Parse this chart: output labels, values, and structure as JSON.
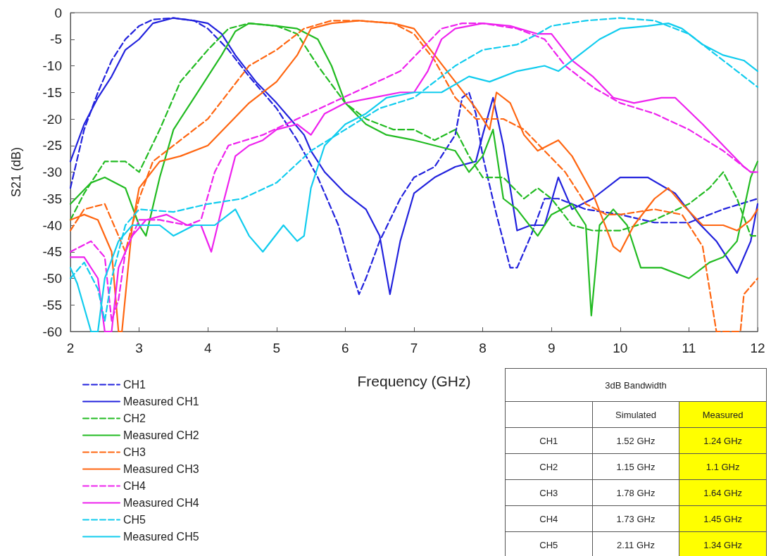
{
  "chart_data": [
    {
      "type": "line",
      "xlabel": "Frequency (GHz)",
      "ylabel": "S21 (dB)",
      "xlim": [
        2,
        12
      ],
      "xticks": [
        2,
        3,
        4,
        5,
        6,
        7,
        8,
        9,
        10,
        11,
        12
      ],
      "ylim": [
        -60,
        0
      ],
      "yticks": [
        -60,
        -55,
        -50,
        -45,
        -40,
        -35,
        -30,
        -25,
        -20,
        -15,
        -10,
        -5,
        0
      ],
      "grid": false,
      "legend": "bottom left",
      "series": [
        {
          "name": "CH1",
          "color": "#2222dd",
          "line_style": "dashed",
          "x": [
            2.0,
            2.2,
            2.4,
            2.6,
            2.8,
            3.0,
            3.2,
            3.5,
            3.8,
            4.0,
            4.3,
            4.6,
            5.0,
            5.3,
            5.6,
            5.9,
            6.1,
            6.2,
            6.3,
            6.5,
            6.8,
            7.0,
            7.3,
            7.6,
            7.7,
            7.8,
            7.9,
            8.0,
            8.2,
            8.4,
            8.5,
            8.7,
            8.9,
            9.1,
            9.5,
            10.0,
            10.5,
            11.0,
            11.5,
            12.0
          ],
          "values": [
            -33,
            -22,
            -15,
            -9,
            -5,
            -2.5,
            -1.3,
            -1,
            -1.5,
            -3,
            -7,
            -12,
            -18,
            -24,
            -31,
            -40,
            -49,
            -53,
            -50,
            -43,
            -35,
            -31,
            -29,
            -23,
            -16,
            -15,
            -19,
            -27,
            -38,
            -48,
            -48,
            -42,
            -35,
            -35,
            -37,
            -38,
            -39.5,
            -39.5,
            -37,
            -35
          ]
        },
        {
          "name": "Measured CH1",
          "color": "#2222dd",
          "line_style": "solid",
          "x": [
            2.0,
            2.2,
            2.4,
            2.6,
            2.8,
            3.0,
            3.2,
            3.5,
            3.8,
            4.0,
            4.2,
            4.4,
            4.7,
            5.0,
            5.2,
            5.4,
            5.5,
            5.7,
            6.0,
            6.3,
            6.5,
            6.65,
            6.8,
            7.0,
            7.3,
            7.6,
            7.9,
            8.0,
            8.15,
            8.3,
            8.5,
            8.7,
            8.9,
            9.1,
            9.3,
            9.6,
            10.0,
            10.4,
            10.8,
            11.1,
            11.4,
            11.7,
            11.9,
            12.0
          ],
          "values": [
            -28,
            -21,
            -16,
            -12,
            -7,
            -5,
            -2,
            -1,
            -1.5,
            -2,
            -4,
            -8,
            -13,
            -17,
            -20,
            -23,
            -26,
            -30,
            -34,
            -37,
            -42,
            -53,
            -43,
            -34,
            -31,
            -29,
            -28,
            -23,
            -16,
            -25,
            -41,
            -40,
            -40,
            -31,
            -37,
            -35,
            -31,
            -31,
            -34,
            -39,
            -43,
            -49,
            -43,
            -36
          ]
        },
        {
          "name": "CH2",
          "color": "#22bb22",
          "line_style": "dashed",
          "x": [
            2.0,
            2.2,
            2.5,
            2.8,
            3.0,
            3.3,
            3.6,
            4.0,
            4.3,
            4.6,
            5.0,
            5.3,
            5.6,
            6.0,
            6.3,
            6.7,
            7.0,
            7.3,
            7.6,
            7.8,
            8.0,
            8.3,
            8.6,
            8.8,
            9.0,
            9.3,
            9.6,
            10.0,
            10.5,
            11.0,
            11.3,
            11.5,
            11.7,
            11.9,
            12.0
          ],
          "values": [
            -39,
            -34,
            -28,
            -28,
            -30,
            -22,
            -13,
            -7,
            -3,
            -2,
            -2.5,
            -4,
            -10,
            -17,
            -20,
            -22,
            -22,
            -24,
            -22,
            -27,
            -31,
            -31,
            -35,
            -33,
            -35,
            -40,
            -41,
            -41,
            -39,
            -36,
            -33,
            -30,
            -35,
            -42,
            -42
          ]
        },
        {
          "name": "Measured CH2",
          "color": "#22bb22",
          "line_style": "solid",
          "x": [
            2.0,
            2.3,
            2.5,
            2.8,
            3.0,
            3.1,
            3.3,
            3.5,
            3.8,
            4.0,
            4.2,
            4.4,
            4.6,
            5.0,
            5.3,
            5.6,
            5.8,
            6.0,
            6.3,
            6.6,
            7.0,
            7.3,
            7.6,
            7.8,
            8.0,
            8.15,
            8.3,
            8.5,
            8.8,
            9.0,
            9.3,
            9.5,
            9.58,
            9.7,
            9.9,
            10.1,
            10.3,
            10.6,
            11.0,
            11.3,
            11.5,
            11.7,
            11.9,
            12.0
          ],
          "values": [
            -36,
            -32,
            -31,
            -33,
            -40,
            -42,
            -31,
            -22,
            -16,
            -12,
            -8,
            -3.5,
            -2,
            -2.5,
            -3,
            -5,
            -10,
            -17,
            -21,
            -23,
            -24,
            -25,
            -26,
            -30,
            -27,
            -22,
            -35,
            -37,
            -42,
            -38,
            -36,
            -40,
            -57,
            -40,
            -37,
            -40,
            -48,
            -48,
            -50,
            -47,
            -46,
            -43,
            -31,
            -28
          ]
        },
        {
          "name": "CH3",
          "color": "#ff6611",
          "line_style": "dashed",
          "x": [
            2.0,
            2.2,
            2.5,
            2.6,
            2.8,
            3.0,
            3.2,
            3.6,
            4.0,
            4.3,
            4.6,
            5.0,
            5.4,
            5.8,
            6.2,
            6.7,
            7.0,
            7.3,
            7.6,
            7.9,
            8.3,
            8.6,
            8.9,
            9.2,
            9.5,
            9.8,
            10.0,
            10.5,
            10.9,
            11.2,
            11.4,
            11.75,
            11.8,
            12.0
          ],
          "values": [
            -41,
            -37,
            -36,
            -39,
            -45,
            -35,
            -28,
            -24,
            -20,
            -15,
            -10,
            -7,
            -3,
            -1.5,
            -1.5,
            -2,
            -4,
            -9,
            -16,
            -20,
            -20,
            -22,
            -26,
            -30,
            -36,
            -38,
            -38,
            -37,
            -38,
            -44,
            -60,
            -60,
            -53,
            -50
          ]
        },
        {
          "name": "Measured CH3",
          "color": "#ff6611",
          "line_style": "solid",
          "x": [
            2.0,
            2.2,
            2.4,
            2.6,
            2.7,
            2.75,
            2.9,
            3.0,
            3.3,
            3.6,
            4.0,
            4.3,
            4.6,
            5.0,
            5.3,
            5.5,
            5.8,
            6.2,
            6.7,
            7.0,
            7.3,
            7.6,
            7.9,
            8.1,
            8.2,
            8.4,
            8.6,
            8.8,
            9.1,
            9.3,
            9.6,
            9.9,
            10.0,
            10.2,
            10.5,
            10.7,
            10.9,
            11.2,
            11.5,
            11.7,
            11.9,
            12.0
          ],
          "values": [
            -39,
            -38,
            -39,
            -45,
            -60,
            -60,
            -40,
            -33,
            -28,
            -27,
            -25,
            -21,
            -17,
            -13,
            -8,
            -3,
            -2,
            -1.5,
            -2,
            -3,
            -8,
            -13,
            -18,
            -22,
            -15,
            -17,
            -23,
            -26,
            -24,
            -27,
            -34,
            -44,
            -45,
            -40,
            -35,
            -33,
            -36,
            -40,
            -40,
            -41,
            -39,
            -37
          ]
        },
        {
          "name": "CH4",
          "color": "#ee22ee",
          "line_style": "dashed",
          "x": [
            2.0,
            2.3,
            2.5,
            2.6,
            2.7,
            2.8,
            3.0,
            3.3,
            3.7,
            3.9,
            4.1,
            4.3,
            4.8,
            5.3,
            5.8,
            6.3,
            6.8,
            7.1,
            7.4,
            7.7,
            8.0,
            8.5,
            8.9,
            9.2,
            9.6,
            10.0,
            10.5,
            11.0,
            11.5,
            11.9,
            12.0
          ],
          "values": [
            -45,
            -43,
            -46,
            -58,
            -54,
            -45,
            -39,
            -39,
            -40,
            -39,
            -30,
            -25,
            -23,
            -20,
            -17,
            -14,
            -11,
            -7,
            -3,
            -2,
            -2,
            -3,
            -5,
            -10,
            -14,
            -17,
            -19,
            -22,
            -26,
            -30,
            -30
          ]
        },
        {
          "name": "Measured CH4",
          "color": "#ee22ee",
          "line_style": "solid",
          "x": [
            2.0,
            2.2,
            2.4,
            2.5,
            2.6,
            2.7,
            2.9,
            3.1,
            3.4,
            3.7,
            3.9,
            4.05,
            4.2,
            4.4,
            4.6,
            4.8,
            5.0,
            5.3,
            5.5,
            5.7,
            6.0,
            6.4,
            6.8,
            7.0,
            7.2,
            7.4,
            7.6,
            8.0,
            8.4,
            8.8,
            9.0,
            9.3,
            9.6,
            9.9,
            10.2,
            10.6,
            10.8,
            11.2,
            11.5,
            11.8,
            11.9,
            12.0
          ],
          "values": [
            -46,
            -46,
            -50,
            -60,
            -60,
            -48,
            -42,
            -39,
            -38,
            -40,
            -40,
            -45,
            -37,
            -27,
            -25,
            -24,
            -22,
            -21,
            -23,
            -19,
            -17,
            -16,
            -15,
            -15,
            -11,
            -5,
            -3,
            -2,
            -2.5,
            -4,
            -4,
            -9,
            -12,
            -16,
            -17,
            -16,
            -16,
            -21,
            -25,
            -29,
            -30,
            -30
          ]
        },
        {
          "name": "CH5",
          "color": "#11ccee",
          "line_style": "dashed",
          "x": [
            2.0,
            2.2,
            2.4,
            2.5,
            2.6,
            2.8,
            3.0,
            3.5,
            4.0,
            4.5,
            5.0,
            5.5,
            6.0,
            6.5,
            7.0,
            7.3,
            7.6,
            8.0,
            8.5,
            8.8,
            9.0,
            9.5,
            10.0,
            10.5,
            11.0,
            11.4,
            11.7,
            12.0
          ],
          "values": [
            -50,
            -47,
            -52,
            -58,
            -50,
            -40,
            -37,
            -37.5,
            -36,
            -35,
            -32,
            -26,
            -22,
            -18,
            -16,
            -13,
            -10,
            -7,
            -6,
            -4,
            -2.5,
            -1.5,
            -1,
            -1.5,
            -4,
            -8,
            -11,
            -14
          ]
        },
        {
          "name": "Measured CH5",
          "color": "#11ccee",
          "line_style": "solid",
          "x": [
            2.0,
            2.1,
            2.3,
            2.4,
            2.5,
            2.7,
            2.9,
            3.1,
            3.3,
            3.5,
            3.8,
            4.1,
            4.4,
            4.6,
            4.8,
            5.1,
            5.3,
            5.4,
            5.5,
            5.7,
            6.0,
            6.3,
            6.6,
            7.0,
            7.4,
            7.8,
            8.1,
            8.5,
            8.9,
            9.1,
            9.4,
            9.7,
            10.0,
            10.4,
            10.7,
            10.9,
            11.2,
            11.5,
            11.8,
            12.0
          ],
          "values": [
            -48,
            -51,
            -60,
            -60,
            -50,
            -43,
            -40,
            -40,
            -40,
            -42,
            -40,
            -40,
            -37,
            -42,
            -45,
            -40,
            -43,
            -42,
            -33,
            -25,
            -21,
            -19,
            -16,
            -15,
            -15,
            -12,
            -13,
            -11,
            -10,
            -11,
            -8,
            -5,
            -3,
            -2.5,
            -2,
            -3,
            -6,
            -8,
            -9,
            -11
          ]
        }
      ]
    },
    {
      "type": "other",
      "title": "3dB Bandwidth",
      "categories": [
        "CH1",
        "CH2",
        "CH3",
        "CH4",
        "CH5"
      ],
      "series": [
        {
          "name": "Simulated",
          "values": [
            1.52,
            1.15,
            1.78,
            1.73,
            2.11
          ],
          "value_labels": [
            "1.52 GHz",
            "1.15 GHz",
            "1.78 GHz",
            "1.73 GHz",
            "2.11 GHz"
          ]
        },
        {
          "name": "Measured",
          "color": "#ffff00",
          "values": [
            1.24,
            1.1,
            1.64,
            1.45,
            1.34
          ],
          "value_labels": [
            "1.24 GHz",
            "1.1 GHz",
            "1.64 GHz",
            "1.45 GHz",
            "1.34 GHz"
          ]
        }
      ]
    }
  ]
}
